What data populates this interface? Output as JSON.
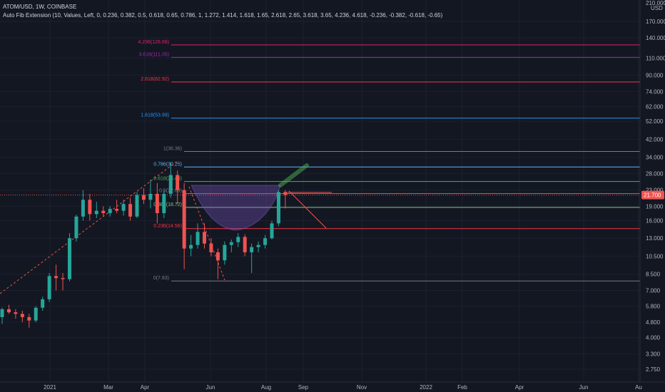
{
  "header": {
    "symbol_line": "ATOM/USD, 1W, COINBASE",
    "indicator_line": "Auto Fib Extension (10, Values, Left, 0, 0.236, 0.382, 0.5, 0.618, 0.65, 0.786, 1, 1.272, 1.414, 1.618, 1.65, 2.618, 2.65, 3.618, 3.65, 4.236, 4.618, -0.236, -0.382, -0.618, -0.65)"
  },
  "colors": {
    "background": "#131722",
    "up": "#26a69a",
    "down": "#ef5350",
    "price_badge": "#ef5350"
  },
  "price_axis": {
    "currency": "USD",
    "top_label": "210.000",
    "ticks": [
      "170.000",
      "140.000",
      "110.000",
      "90.000",
      "74.000",
      "62.000",
      "52.000",
      "42.000",
      "34.000",
      "28.000",
      "23.000",
      "19.000",
      "16.000",
      "13.000",
      "10.500",
      "8.500",
      "7.000",
      "5.800",
      "4.800",
      "4.000",
      "3.300",
      "2.750"
    ],
    "current_price": "21.700"
  },
  "time_axis": {
    "labels": [
      "2021",
      "Mar",
      "Apr",
      "Jun",
      "Aug",
      "Sep",
      "Nov",
      "2022",
      "Feb",
      "Apr",
      "Jun",
      "Au"
    ]
  },
  "fib_levels": [
    {
      "label": "4.236(128.68)",
      "price": 128.68,
      "color": "#e91e63"
    },
    {
      "label": "3.618(111.05)",
      "price": 111.05,
      "color": "#9c27b0"
    },
    {
      "label": "2.618(82.92)",
      "price": 82.92,
      "color": "#f23645"
    },
    {
      "label": "1.618(53.99)",
      "price": 53.99,
      "color": "#2196f3"
    },
    {
      "label": "1(36.36)",
      "price": 36.36,
      "color": "#787b86"
    },
    {
      "label": "0.786(30.25)",
      "price": 30.25,
      "color": "#64b5f6"
    },
    {
      "label": "0.618(25.46)",
      "price": 25.46,
      "color": "#4caf50"
    },
    {
      "label": "0.5(22.09)",
      "price": 22.09,
      "color": "#787b86"
    },
    {
      "label": "0.382(18.72)",
      "price": 18.72,
      "color": "#81c784"
    },
    {
      "label": "0.236(14.56)",
      "price": 14.56,
      "color": "#f23645"
    },
    {
      "label": "0(7.83)",
      "price": 7.83,
      "color": "#787b86"
    }
  ],
  "chart_data": {
    "type": "candlestick",
    "symbol": "ATOM/USD",
    "interval": "1W",
    "exchange": "COINBASE",
    "y_scale": "log",
    "ylim": [
      2.6,
      210
    ],
    "candles": [
      {
        "o": 5.1,
        "h": 5.7,
        "l": 4.7,
        "c": 5.6
      },
      {
        "o": 5.6,
        "h": 5.9,
        "l": 5.3,
        "c": 5.4
      },
      {
        "o": 5.4,
        "h": 5.6,
        "l": 5.0,
        "c": 5.3
      },
      {
        "o": 5.3,
        "h": 5.5,
        "l": 4.8,
        "c": 5.1
      },
      {
        "o": 5.1,
        "h": 5.3,
        "l": 4.5,
        "c": 4.9
      },
      {
        "o": 4.9,
        "h": 5.8,
        "l": 4.8,
        "c": 5.7
      },
      {
        "o": 5.7,
        "h": 6.5,
        "l": 5.5,
        "c": 6.3
      },
      {
        "o": 6.3,
        "h": 8.6,
        "l": 6.1,
        "c": 8.3
      },
      {
        "o": 8.3,
        "h": 9.5,
        "l": 7.0,
        "c": 8.1
      },
      {
        "o": 8.1,
        "h": 8.6,
        "l": 7.0,
        "c": 8.0
      },
      {
        "o": 8.0,
        "h": 13.8,
        "l": 7.8,
        "c": 13.0
      },
      {
        "o": 13.0,
        "h": 17.2,
        "l": 12.5,
        "c": 16.8
      },
      {
        "o": 16.8,
        "h": 23.0,
        "l": 16.0,
        "c": 20.5
      },
      {
        "o": 20.5,
        "h": 22.0,
        "l": 16.0,
        "c": 17.3
      },
      {
        "o": 17.3,
        "h": 20.0,
        "l": 16.5,
        "c": 18.0
      },
      {
        "o": 18.0,
        "h": 19.0,
        "l": 16.8,
        "c": 17.5
      },
      {
        "o": 17.5,
        "h": 19.0,
        "l": 16.8,
        "c": 18.4
      },
      {
        "o": 18.4,
        "h": 20.5,
        "l": 17.5,
        "c": 18.0
      },
      {
        "o": 18.0,
        "h": 20.5,
        "l": 17.0,
        "c": 19.5
      },
      {
        "o": 19.5,
        "h": 21.0,
        "l": 16.0,
        "c": 16.8
      },
      {
        "o": 16.8,
        "h": 22.5,
        "l": 16.5,
        "c": 21.7
      },
      {
        "o": 21.7,
        "h": 23.5,
        "l": 19.5,
        "c": 20.5
      },
      {
        "o": 20.5,
        "h": 26.0,
        "l": 18.5,
        "c": 22.0
      },
      {
        "o": 22.0,
        "h": 25.0,
        "l": 15.5,
        "c": 17.5
      },
      {
        "o": 17.5,
        "h": 23.0,
        "l": 16.5,
        "c": 22.0
      },
      {
        "o": 22.0,
        "h": 32.0,
        "l": 21.0,
        "c": 27.5
      },
      {
        "o": 27.5,
        "h": 29.0,
        "l": 19.5,
        "c": 23.0
      },
      {
        "o": 23.0,
        "h": 25.0,
        "l": 9.0,
        "c": 11.5
      },
      {
        "o": 11.5,
        "h": 13.5,
        "l": 10.5,
        "c": 12.0
      },
      {
        "o": 12.0,
        "h": 15.5,
        "l": 11.5,
        "c": 14.0
      },
      {
        "o": 14.0,
        "h": 15.5,
        "l": 11.5,
        "c": 12.2
      },
      {
        "o": 12.2,
        "h": 13.0,
        "l": 10.5,
        "c": 11.0
      },
      {
        "o": 11.0,
        "h": 11.5,
        "l": 8.0,
        "c": 10.0
      },
      {
        "o": 10.0,
        "h": 12.5,
        "l": 9.5,
        "c": 12.0
      },
      {
        "o": 12.0,
        "h": 12.8,
        "l": 11.0,
        "c": 12.4
      },
      {
        "o": 12.4,
        "h": 13.8,
        "l": 11.7,
        "c": 13.2
      },
      {
        "o": 13.2,
        "h": 13.6,
        "l": 10.5,
        "c": 11.0
      },
      {
        "o": 11.0,
        "h": 12.2,
        "l": 8.6,
        "c": 11.7
      },
      {
        "o": 11.7,
        "h": 12.5,
        "l": 11.0,
        "c": 12.0
      },
      {
        "o": 12.0,
        "h": 13.5,
        "l": 11.5,
        "c": 13.0
      },
      {
        "o": 13.0,
        "h": 16.0,
        "l": 12.8,
        "c": 15.5
      },
      {
        "o": 15.5,
        "h": 23.0,
        "l": 15.0,
        "c": 22.5
      },
      {
        "o": 22.5,
        "h": 23.0,
        "l": 18.5,
        "c": 21.7
      }
    ]
  }
}
